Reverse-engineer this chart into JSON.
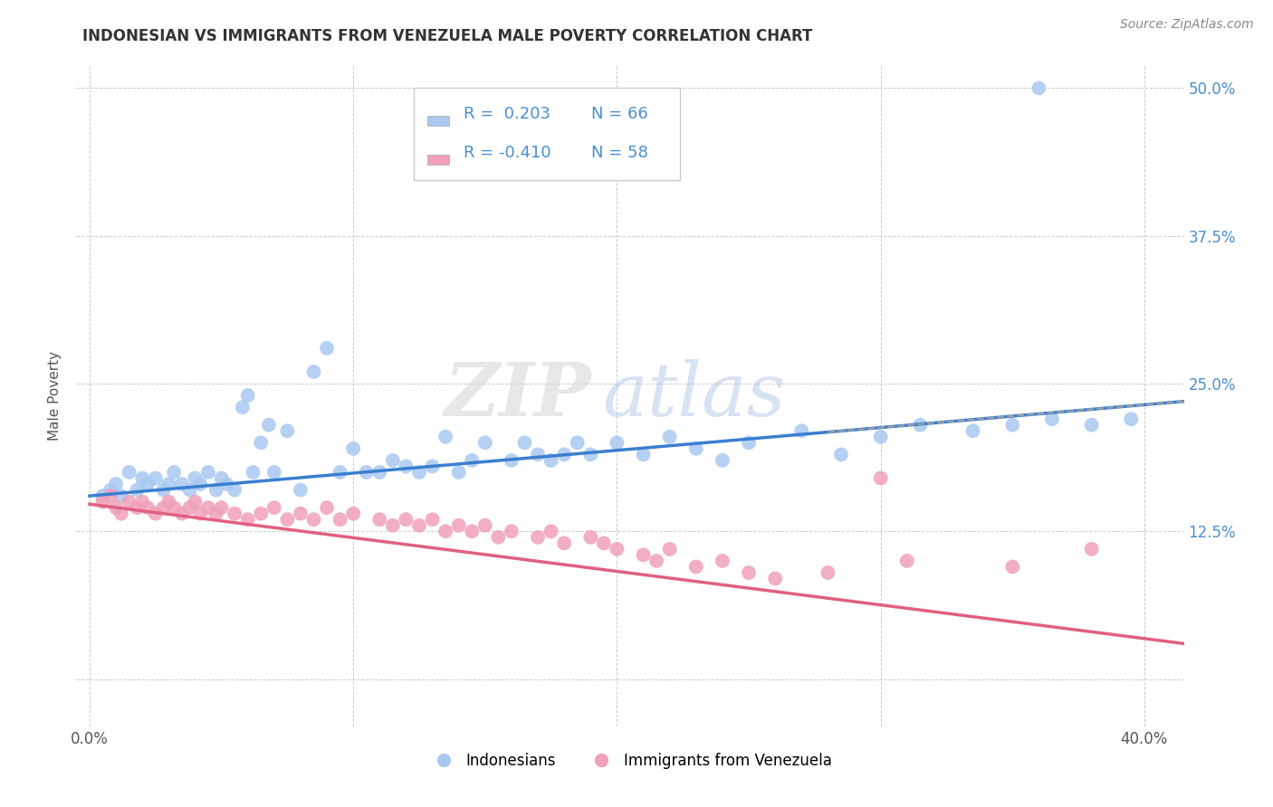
{
  "title": "INDONESIAN VS IMMIGRANTS FROM VENEZUELA MALE POVERTY CORRELATION CHART",
  "source": "Source: ZipAtlas.com",
  "ylabel": "Male Poverty",
  "xlim": [
    -0.005,
    0.415
  ],
  "ylim": [
    -0.04,
    0.52
  ],
  "x_ticks": [
    0.0,
    0.1,
    0.2,
    0.3,
    0.4
  ],
  "x_tick_labels": [
    "0.0%",
    "",
    "",
    "",
    "40.0%"
  ],
  "y_ticks": [
    0.0,
    0.125,
    0.25,
    0.375,
    0.5
  ],
  "y_tick_labels_right": [
    "",
    "12.5%",
    "25.0%",
    "37.5%",
    "50.0%"
  ],
  "blue_color": "#a8c8f0",
  "pink_color": "#f0a0b8",
  "blue_line_color": "#3a7fd0",
  "pink_line_color": "#e06080",
  "dashed_line_color": "#a0a0a0",
  "watermark_zip": "ZIP",
  "watermark_atlas": "atlas",
  "legend_label1": "Indonesians",
  "legend_label2": "Immigrants from Venezuela",
  "background_color": "#ffffff",
  "grid_color": "#cccccc",
  "blue_scatter_x": [
    0.005,
    0.008,
    0.01,
    0.012,
    0.015,
    0.018,
    0.02,
    0.022,
    0.025,
    0.028,
    0.03,
    0.032,
    0.035,
    0.038,
    0.04,
    0.042,
    0.045,
    0.048,
    0.05,
    0.052,
    0.055,
    0.058,
    0.06,
    0.062,
    0.065,
    0.068,
    0.07,
    0.075,
    0.08,
    0.085,
    0.09,
    0.095,
    0.1,
    0.105,
    0.11,
    0.115,
    0.12,
    0.125,
    0.13,
    0.135,
    0.14,
    0.145,
    0.15,
    0.16,
    0.165,
    0.17,
    0.175,
    0.18,
    0.185,
    0.19,
    0.2,
    0.21,
    0.22,
    0.23,
    0.24,
    0.25,
    0.27,
    0.285,
    0.3,
    0.315,
    0.335,
    0.35,
    0.365,
    0.38,
    0.395,
    0.36
  ],
  "blue_scatter_y": [
    0.155,
    0.16,
    0.165,
    0.155,
    0.175,
    0.16,
    0.17,
    0.165,
    0.17,
    0.16,
    0.165,
    0.175,
    0.165,
    0.16,
    0.17,
    0.165,
    0.175,
    0.16,
    0.17,
    0.165,
    0.16,
    0.23,
    0.24,
    0.175,
    0.2,
    0.215,
    0.175,
    0.21,
    0.16,
    0.26,
    0.28,
    0.175,
    0.195,
    0.175,
    0.175,
    0.185,
    0.18,
    0.175,
    0.18,
    0.205,
    0.175,
    0.185,
    0.2,
    0.185,
    0.2,
    0.19,
    0.185,
    0.19,
    0.2,
    0.19,
    0.2,
    0.19,
    0.205,
    0.195,
    0.185,
    0.2,
    0.21,
    0.19,
    0.205,
    0.215,
    0.21,
    0.215,
    0.22,
    0.215,
    0.22,
    0.5
  ],
  "pink_scatter_x": [
    0.005,
    0.008,
    0.01,
    0.012,
    0.015,
    0.018,
    0.02,
    0.022,
    0.025,
    0.028,
    0.03,
    0.032,
    0.035,
    0.038,
    0.04,
    0.042,
    0.045,
    0.048,
    0.05,
    0.055,
    0.06,
    0.065,
    0.07,
    0.075,
    0.08,
    0.085,
    0.09,
    0.095,
    0.1,
    0.11,
    0.115,
    0.12,
    0.125,
    0.13,
    0.135,
    0.14,
    0.145,
    0.15,
    0.155,
    0.16,
    0.17,
    0.175,
    0.18,
    0.19,
    0.195,
    0.2,
    0.21,
    0.215,
    0.22,
    0.23,
    0.24,
    0.25,
    0.26,
    0.28,
    0.3,
    0.31,
    0.35,
    0.38
  ],
  "pink_scatter_y": [
    0.15,
    0.155,
    0.145,
    0.14,
    0.15,
    0.145,
    0.15,
    0.145,
    0.14,
    0.145,
    0.15,
    0.145,
    0.14,
    0.145,
    0.15,
    0.14,
    0.145,
    0.14,
    0.145,
    0.14,
    0.135,
    0.14,
    0.145,
    0.135,
    0.14,
    0.135,
    0.145,
    0.135,
    0.14,
    0.135,
    0.13,
    0.135,
    0.13,
    0.135,
    0.125,
    0.13,
    0.125,
    0.13,
    0.12,
    0.125,
    0.12,
    0.125,
    0.115,
    0.12,
    0.115,
    0.11,
    0.105,
    0.1,
    0.11,
    0.095,
    0.1,
    0.09,
    0.085,
    0.09,
    0.17,
    0.1,
    0.095,
    0.11
  ],
  "blue_trend_x0": 0.0,
  "blue_trend_y0": 0.155,
  "blue_trend_x1": 0.415,
  "blue_trend_y1": 0.235,
  "pink_trend_x0": 0.0,
  "pink_trend_y0": 0.148,
  "pink_trend_x1": 0.415,
  "pink_trend_y1": 0.03
}
